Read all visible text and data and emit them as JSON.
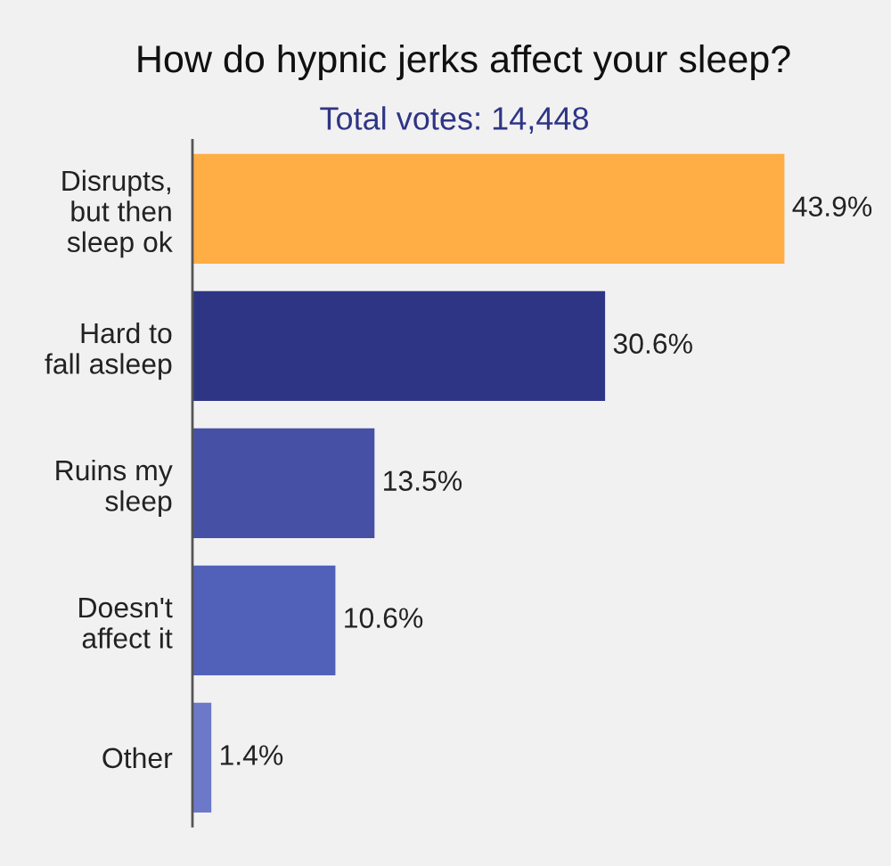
{
  "chart_data": {
    "type": "bar",
    "orientation": "horizontal",
    "title": "How do hypnic jerks affect your sleep?",
    "subtitle": "Total votes: 14,448",
    "categories": [
      "Disrupts,\nbut then\nsleep ok",
      "Hard to\nfall asleep",
      "Ruins my\nsleep",
      "Doesn't\naffect it",
      "Other"
    ],
    "values": [
      43.9,
      30.6,
      13.5,
      10.6,
      1.4
    ],
    "colors": [
      "#ffad45",
      "#2e3585",
      "#4650a5",
      "#5161ba",
      "#6b79c8"
    ],
    "value_labels": [
      "43.9%",
      "30.6%",
      "13.5%",
      "10.6%",
      "1.4%"
    ],
    "tick_labels": "y"
  }
}
